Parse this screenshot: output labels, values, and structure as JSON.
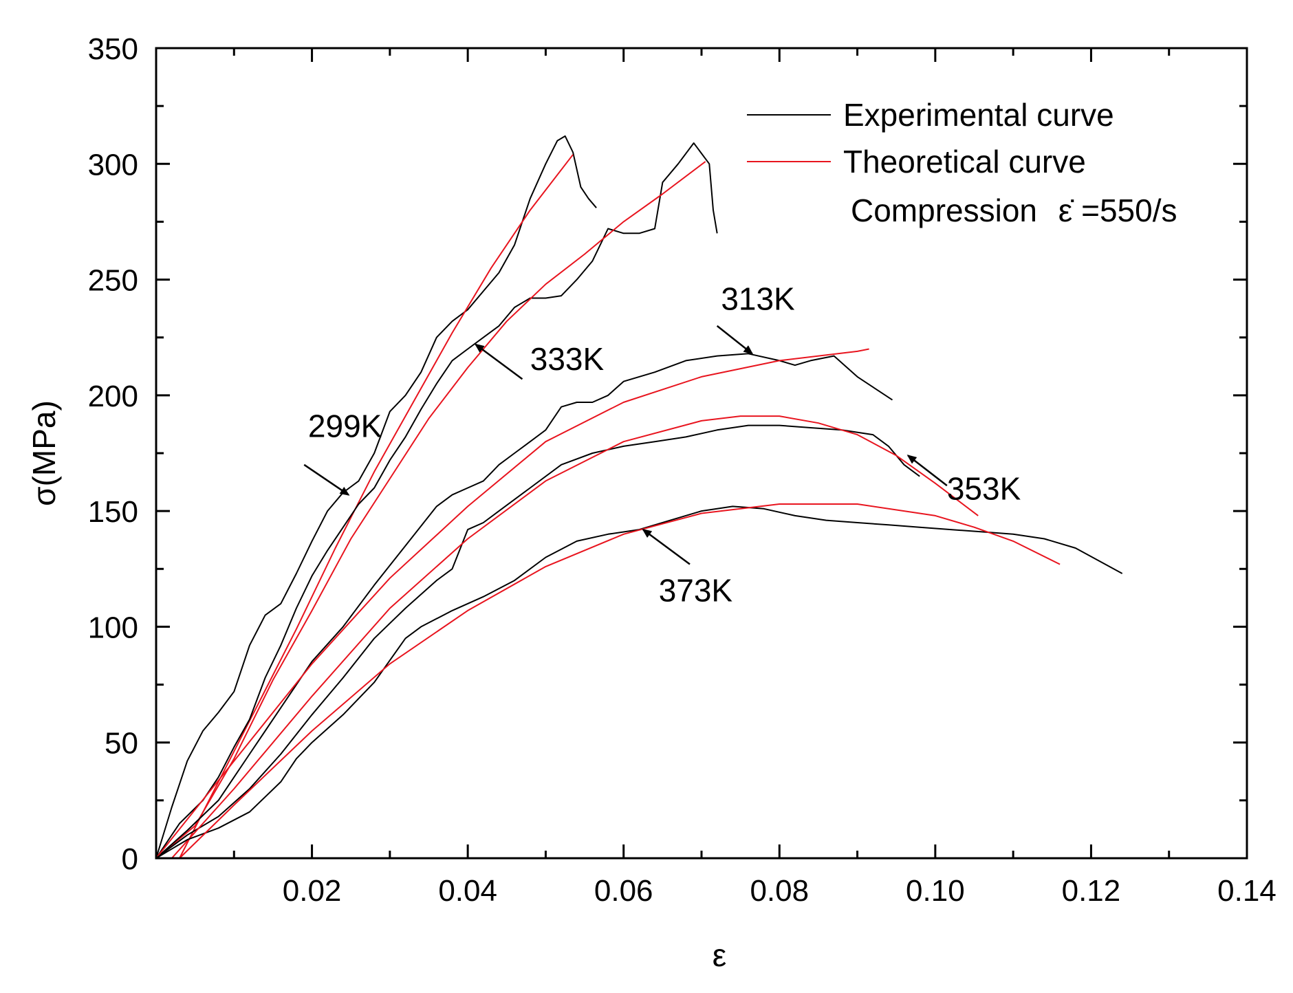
{
  "chart_data": {
    "type": "line",
    "title": "",
    "xlabel": "ε",
    "ylabel": "σ(MPa)",
    "xlim": [
      0,
      0.14
    ],
    "ylim": [
      0,
      350
    ],
    "x_ticks": [
      0.02,
      0.04,
      0.06,
      0.08,
      0.1,
      0.12,
      0.14
    ],
    "x_tick_labels": [
      "0.02",
      "0.04",
      "0.06",
      "0.08",
      "0.10",
      "0.12",
      "0.14"
    ],
    "y_ticks": [
      0,
      50,
      100,
      150,
      200,
      250,
      300,
      350
    ],
    "y_tick_labels": [
      "0",
      "50",
      "100",
      "150",
      "200",
      "250",
      "300",
      "350"
    ],
    "grid": false,
    "legend": {
      "position": "top-right",
      "entries": [
        {
          "label": "Experimental curve",
          "color": "#000000"
        },
        {
          "label": "Theoretical curve",
          "color": "#e8141e"
        }
      ],
      "condition_prefix": "Compression",
      "condition_symbol": "ε̇",
      "condition_value": "=550/s"
    },
    "series": [
      {
        "name": "299K",
        "kind": "experimental",
        "color": "#000000",
        "x": [
          0,
          0.002,
          0.004,
          0.006,
          0.008,
          0.01,
          0.012,
          0.014,
          0.016,
          0.018,
          0.02,
          0.022,
          0.024,
          0.026,
          0.028,
          0.03,
          0.032,
          0.034,
          0.036,
          0.038,
          0.04,
          0.042,
          0.044,
          0.046,
          0.048,
          0.05,
          0.0515,
          0.0525,
          0.0535,
          0.0545,
          0.0555,
          0.0565
        ],
        "y": [
          0,
          22,
          42,
          55,
          63,
          72,
          92,
          105,
          110,
          123,
          137,
          150,
          158,
          163,
          175,
          193,
          200,
          210,
          225,
          232,
          237,
          245,
          253,
          265,
          285,
          300,
          310,
          312,
          305,
          290,
          285,
          281
        ]
      },
      {
        "name": "299K",
        "kind": "theoretical",
        "color": "#e8141e",
        "x": [
          0.003,
          0.008,
          0.013,
          0.018,
          0.023,
          0.028,
          0.033,
          0.038,
          0.043,
          0.048,
          0.0535
        ],
        "y": [
          0,
          33,
          66,
          99,
          134,
          167,
          197,
          227,
          255,
          280,
          304
        ]
      },
      {
        "name": "333K",
        "kind": "experimental",
        "color": "#000000",
        "x": [
          0,
          0.003,
          0.006,
          0.008,
          0.01,
          0.012,
          0.014,
          0.016,
          0.018,
          0.02,
          0.022,
          0.024,
          0.026,
          0.028,
          0.03,
          0.032,
          0.034,
          0.036,
          0.038,
          0.04,
          0.042,
          0.044,
          0.046,
          0.048,
          0.05,
          0.052,
          0.054,
          0.056,
          0.058,
          0.06,
          0.062,
          0.064,
          0.065,
          0.067,
          0.069,
          0.071,
          0.0715,
          0.072
        ],
        "y": [
          0,
          15,
          25,
          35,
          48,
          60,
          78,
          92,
          108,
          122,
          133,
          143,
          153,
          160,
          172,
          182,
          194,
          205,
          215,
          220,
          225,
          230,
          238,
          242,
          242,
          243,
          250,
          258,
          272,
          270,
          270,
          272,
          292,
          300,
          309,
          300,
          280,
          270
        ]
      },
      {
        "name": "333K",
        "kind": "theoretical",
        "color": "#e8141e",
        "x": [
          0,
          0.005,
          0.01,
          0.015,
          0.02,
          0.025,
          0.03,
          0.035,
          0.04,
          0.045,
          0.05,
          0.055,
          0.06,
          0.065,
          0.0705
        ],
        "y": [
          0,
          14,
          43,
          77,
          107,
          138,
          164,
          190,
          212,
          232,
          248,
          261,
          275,
          287,
          301
        ]
      },
      {
        "name": "313K",
        "kind": "experimental",
        "color": "#000000",
        "x": [
          0,
          0.004,
          0.008,
          0.012,
          0.016,
          0.02,
          0.024,
          0.028,
          0.032,
          0.036,
          0.038,
          0.04,
          0.042,
          0.044,
          0.046,
          0.048,
          0.05,
          0.052,
          0.054,
          0.056,
          0.058,
          0.06,
          0.064,
          0.068,
          0.072,
          0.076,
          0.08,
          0.082,
          0.084,
          0.087,
          0.09,
          0.0945
        ],
        "y": [
          0,
          12,
          25,
          45,
          65,
          85,
          100,
          118,
          135,
          152,
          157,
          160,
          163,
          170,
          175,
          180,
          185,
          195,
          197,
          197,
          200,
          206,
          210,
          215,
          217,
          218,
          215,
          213,
          215,
          217,
          208,
          198
        ]
      },
      {
        "name": "313K",
        "kind": "theoretical",
        "color": "#e8141e",
        "x": [
          0,
          0.01,
          0.02,
          0.03,
          0.04,
          0.05,
          0.06,
          0.07,
          0.08,
          0.09,
          0.0915
        ],
        "y": [
          0,
          42,
          84,
          121,
          152,
          180,
          197,
          208,
          215,
          219,
          220
        ]
      },
      {
        "name": "353K",
        "kind": "experimental",
        "color": "#000000",
        "x": [
          0,
          0.004,
          0.008,
          0.012,
          0.016,
          0.02,
          0.024,
          0.028,
          0.032,
          0.036,
          0.038,
          0.04,
          0.042,
          0.044,
          0.048,
          0.052,
          0.056,
          0.06,
          0.064,
          0.068,
          0.072,
          0.076,
          0.08,
          0.084,
          0.088,
          0.092,
          0.094,
          0.096,
          0.098
        ],
        "y": [
          0,
          10,
          18,
          30,
          45,
          62,
          78,
          95,
          108,
          120,
          125,
          142,
          145,
          150,
          160,
          170,
          175,
          178,
          180,
          182,
          185,
          187,
          187,
          186,
          185,
          183,
          178,
          170,
          165
        ]
      },
      {
        "name": "353K",
        "kind": "theoretical",
        "color": "#e8141e",
        "x": [
          0.002,
          0.01,
          0.02,
          0.03,
          0.04,
          0.05,
          0.06,
          0.07,
          0.075,
          0.08,
          0.085,
          0.09,
          0.095,
          0.1,
          0.1055
        ],
        "y": [
          0,
          30,
          70,
          108,
          138,
          163,
          180,
          189,
          191,
          191,
          188,
          183,
          174,
          162,
          148
        ]
      },
      {
        "name": "373K",
        "kind": "experimental",
        "color": "#000000",
        "x": [
          0,
          0.004,
          0.008,
          0.012,
          0.016,
          0.018,
          0.02,
          0.024,
          0.028,
          0.032,
          0.034,
          0.038,
          0.042,
          0.046,
          0.05,
          0.054,
          0.058,
          0.062,
          0.066,
          0.07,
          0.074,
          0.078,
          0.082,
          0.086,
          0.09,
          0.094,
          0.098,
          0.102,
          0.106,
          0.11,
          0.114,
          0.118,
          0.124
        ],
        "y": [
          0,
          8,
          13,
          20,
          33,
          43,
          50,
          62,
          76,
          95,
          100,
          107,
          113,
          120,
          130,
          137,
          140,
          142,
          146,
          150,
          152,
          151,
          148,
          146,
          145,
          144,
          143,
          142,
          141,
          140,
          138,
          134,
          123
        ]
      },
      {
        "name": "373K",
        "kind": "theoretical",
        "color": "#e8141e",
        "x": [
          0.003,
          0.01,
          0.02,
          0.03,
          0.04,
          0.05,
          0.06,
          0.07,
          0.08,
          0.09,
          0.1,
          0.105,
          0.11,
          0.116
        ],
        "y": [
          0,
          23,
          55,
          84,
          107,
          126,
          140,
          149,
          153,
          153,
          148,
          143,
          137,
          127
        ]
      }
    ],
    "annotations": [
      {
        "label": "299K",
        "text_x": 0.0195,
        "text_y": 182,
        "arrow_from_x": 0.019,
        "arrow_from_y": 170,
        "arrow_to_x": 0.0247,
        "arrow_to_y": 157
      },
      {
        "label": "333K",
        "text_x": 0.048,
        "text_y": 211,
        "arrow_from_x": 0.047,
        "arrow_from_y": 207,
        "arrow_to_x": 0.041,
        "arrow_to_y": 222
      },
      {
        "label": "313K",
        "text_x": 0.0725,
        "text_y": 237,
        "arrow_from_x": 0.072,
        "arrow_from_y": 230,
        "arrow_to_x": 0.0765,
        "arrow_to_y": 218
      },
      {
        "label": "353K",
        "text_x": 0.1015,
        "text_y": 155,
        "arrow_from_x": 0.1015,
        "arrow_from_y": 161,
        "arrow_to_x": 0.0965,
        "arrow_to_y": 174
      },
      {
        "label": "373K",
        "text_x": 0.0645,
        "text_y": 111,
        "arrow_from_x": 0.0685,
        "arrow_from_y": 127,
        "arrow_to_x": 0.0625,
        "arrow_to_y": 142
      }
    ]
  }
}
